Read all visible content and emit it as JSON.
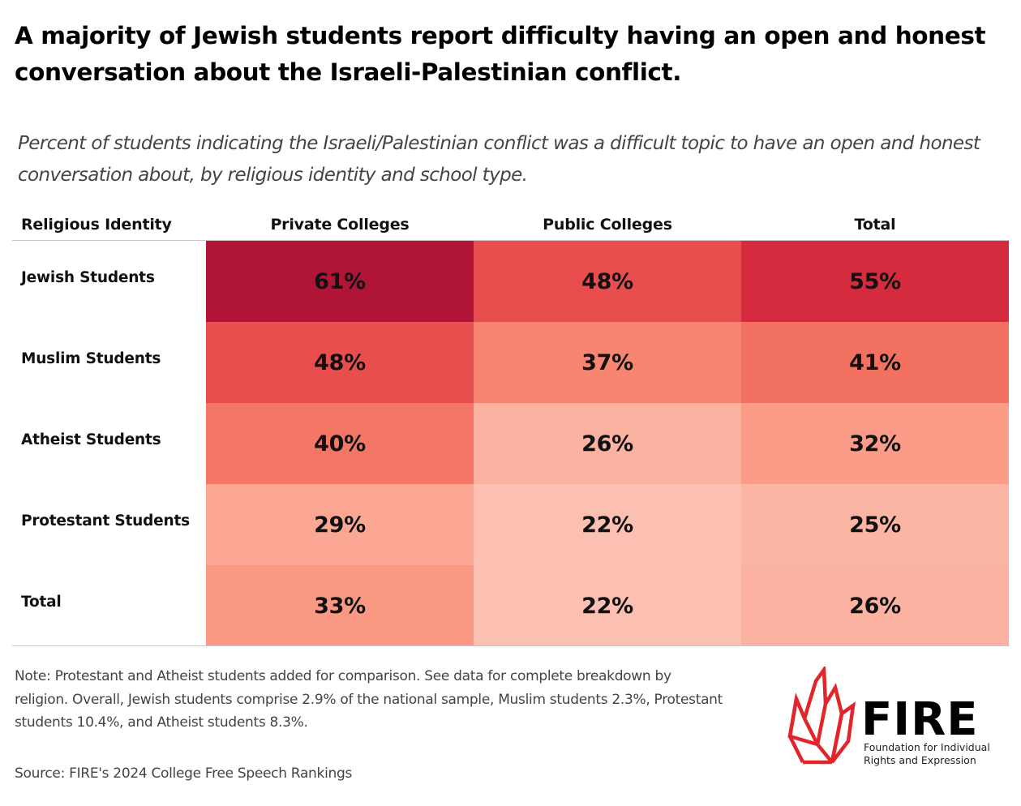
{
  "title": "A majority of Jewish students report difficulty having an open and honest conversation about the Israeli-Palestinian conflict.",
  "subtitle": "Percent of students indicating the Israeli/Palestinian conflict was a difficult topic to have an open and honest conversation about, by religious identity and school type.",
  "table": {
    "row_header": "Religious Identity",
    "columns": [
      "Private Colleges",
      "Public Colleges",
      "Total"
    ]
  },
  "chart_data": {
    "type": "heatmap",
    "title": "A majority of Jewish students report difficulty having an open and honest conversation about the Israeli-Palestinian conflict.",
    "subtitle": "Percent of students indicating the Israeli/Palestinian conflict was a difficult topic to have an open and honest conversation about, by religious identity and school type.",
    "row_header": "Religious Identity",
    "columns": [
      "Private Colleges",
      "Public Colleges",
      "Total"
    ],
    "rows": [
      {
        "label": "Jewish Students",
        "values": [
          61,
          48,
          55
        ],
        "display": [
          "61%",
          "48%",
          "55%"
        ]
      },
      {
        "label": "Muslim Students",
        "values": [
          48,
          37,
          41
        ],
        "display": [
          "48%",
          "37%",
          "41%"
        ]
      },
      {
        "label": "Atheist Students",
        "values": [
          40,
          26,
          32
        ],
        "display": [
          "40%",
          "26%",
          "32%"
        ]
      },
      {
        "label": "Protestant Students",
        "values": [
          29,
          22,
          25
        ],
        "display": [
          "29%",
          "22%",
          "25%"
        ]
      },
      {
        "label": "Total",
        "values": [
          33,
          22,
          26
        ],
        "display": [
          "33%",
          "22%",
          "26%"
        ]
      }
    ],
    "unit": "%",
    "color_scale": {
      "low": "#fcc0b2",
      "high": "#b01437"
    }
  },
  "note": "Note: Protestant and Atheist students added for comparison. See data for complete breakdown by religion. Overall, Jewish students comprise 2.9% of the national sample, Muslim students 2.3%, Protestant students 10.4%, and Atheist students 8.3%.",
  "source": "Source: FIRE's 2024 College Free Speech Rankings",
  "logo": {
    "wordmark": "FIRE",
    "tagline_line1": "Foundation for Individual",
    "tagline_line2": "Rights and Expression",
    "color": "#e2252b"
  }
}
